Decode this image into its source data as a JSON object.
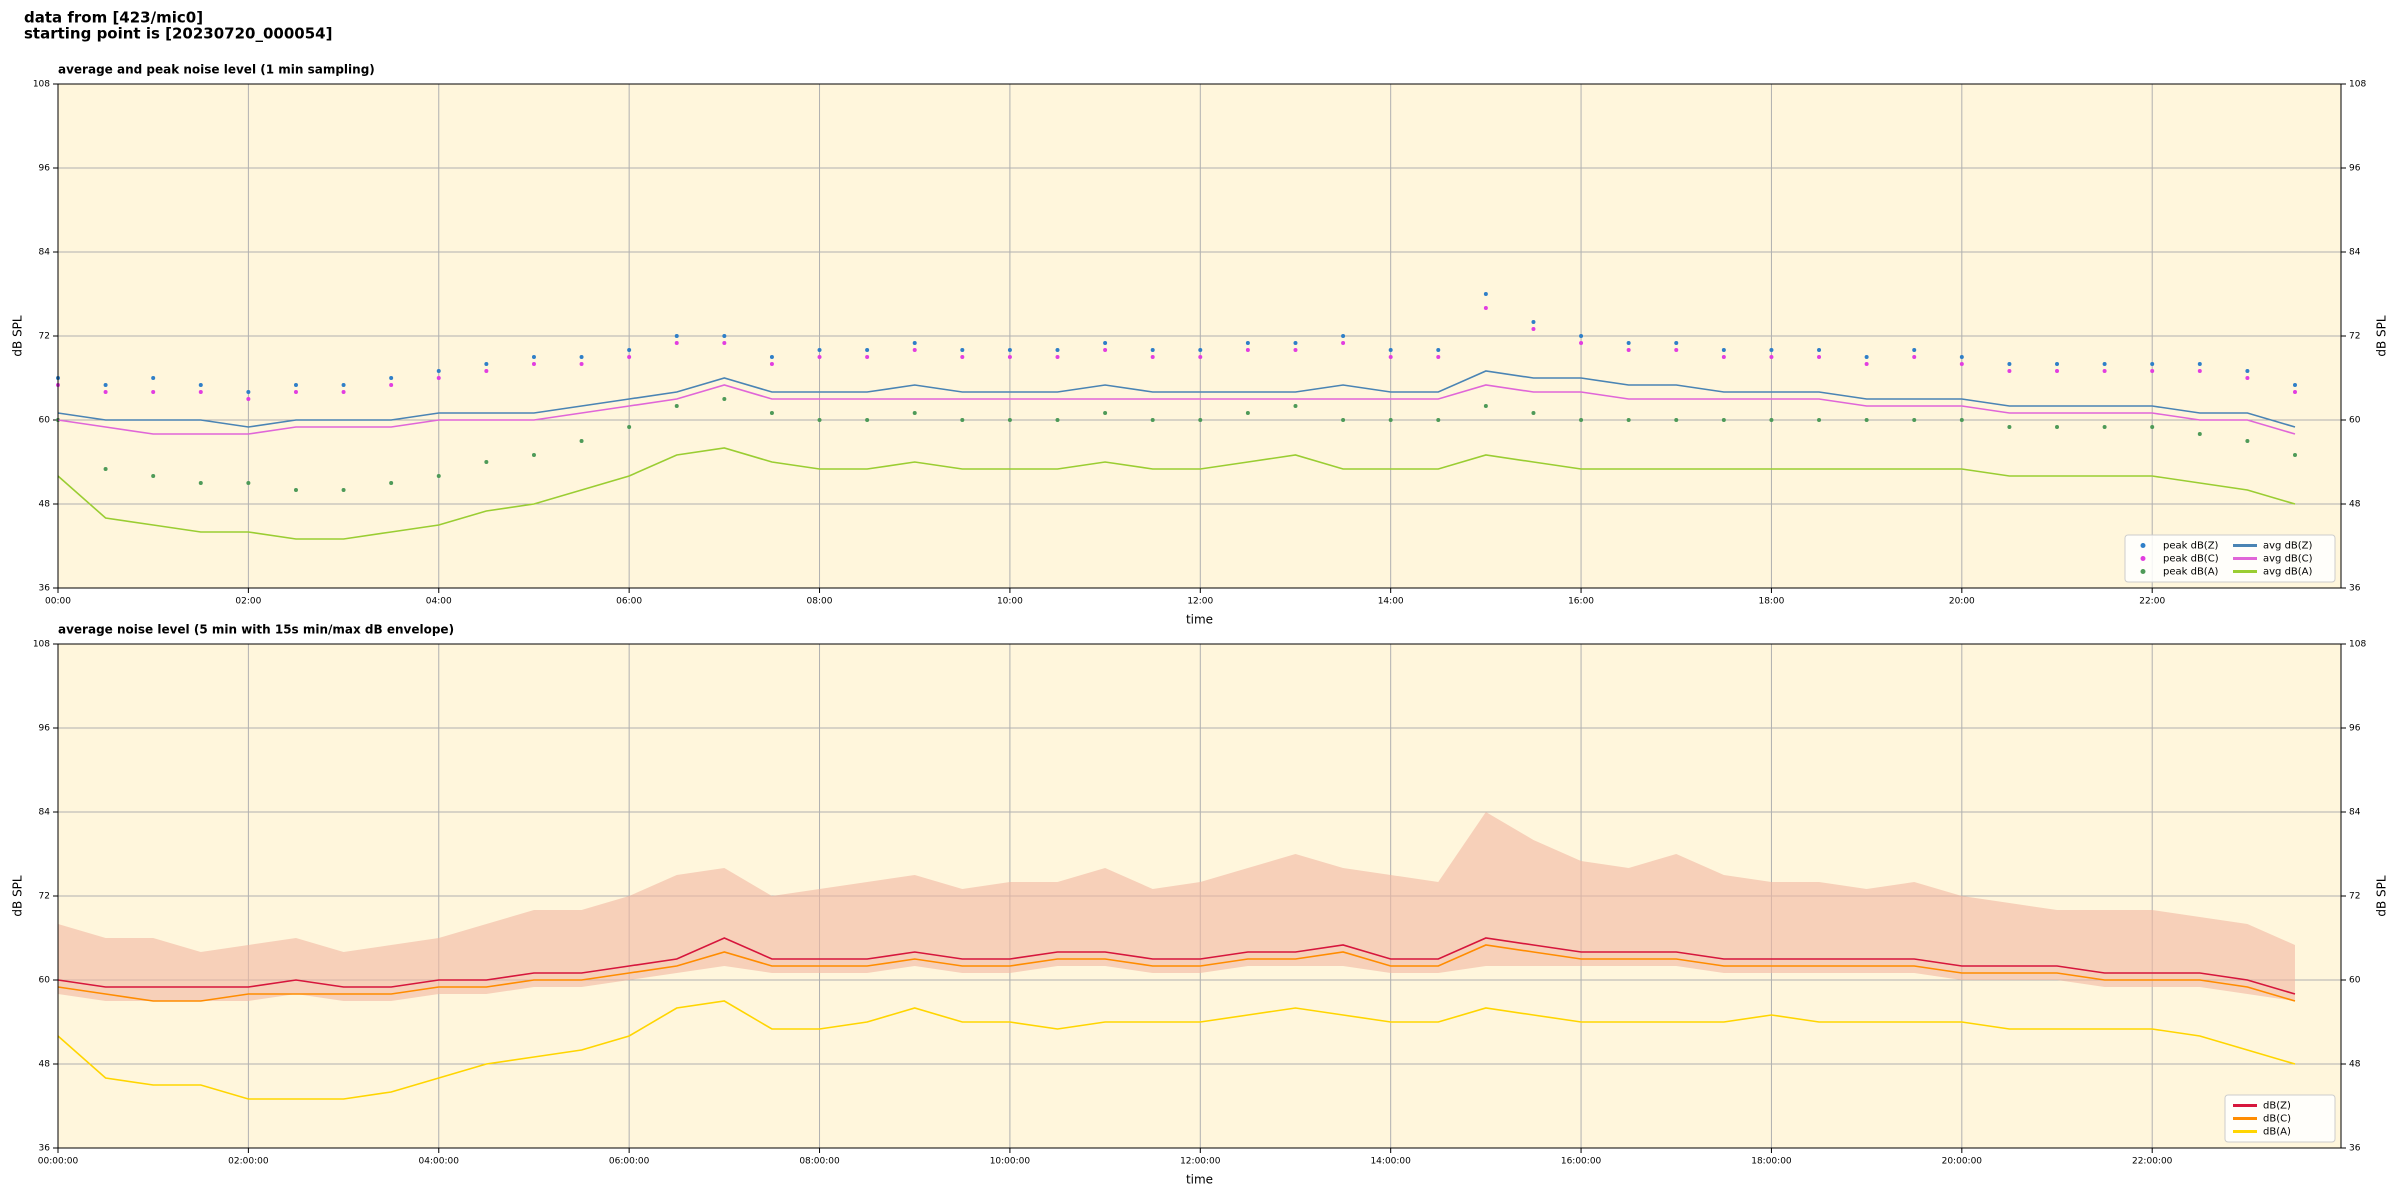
{
  "header": {
    "line1": "data from [423/mic0]",
    "line2": "starting point is [20230720_000054]"
  },
  "chart_data": [
    {
      "type": "line",
      "title": "average and peak noise level (1 min sampling)",
      "xlabel": "time",
      "ylabel": "dB SPL",
      "x": [
        "00:00",
        "00:30",
        "01:00",
        "01:30",
        "02:00",
        "02:30",
        "03:00",
        "03:30",
        "04:00",
        "04:30",
        "05:00",
        "05:30",
        "06:00",
        "06:30",
        "07:00",
        "07:30",
        "08:00",
        "08:30",
        "09:00",
        "09:30",
        "10:00",
        "10:30",
        "11:00",
        "11:30",
        "12:00",
        "12:30",
        "13:00",
        "13:30",
        "14:00",
        "14:30",
        "15:00",
        "15:30",
        "16:00",
        "16:30",
        "17:00",
        "17:30",
        "18:00",
        "18:30",
        "19:00",
        "19:30",
        "20:00",
        "20:30",
        "21:00",
        "21:30",
        "22:00",
        "22:30",
        "23:00",
        "23:30"
      ],
      "xlim": [
        "00:00",
        "23:59"
      ],
      "xticks": [
        "00:00",
        "02:00",
        "04:00",
        "06:00",
        "08:00",
        "10:00",
        "12:00",
        "14:00",
        "16:00",
        "18:00",
        "20:00",
        "22:00"
      ],
      "ylim": [
        36,
        108
      ],
      "yticks": [
        36,
        48,
        60,
        72,
        84,
        96,
        108
      ],
      "grid": true,
      "legend": "lower right",
      "legend_columns": 2,
      "series": [
        {
          "name": "peak dB(Z)",
          "style": "scatter",
          "color": "#2f7fc8",
          "values": [
            66,
            65,
            66,
            65,
            64,
            65,
            65,
            66,
            67,
            68,
            69,
            69,
            70,
            72,
            72,
            69,
            70,
            70,
            71,
            70,
            70,
            70,
            71,
            70,
            70,
            71,
            71,
            72,
            70,
            70,
            78,
            74,
            72,
            71,
            71,
            70,
            70,
            70,
            69,
            70,
            69,
            68,
            68,
            68,
            68,
            68,
            67,
            65
          ]
        },
        {
          "name": "peak dB(C)",
          "style": "scatter",
          "color": "#e23de0",
          "values": [
            65,
            64,
            64,
            64,
            63,
            64,
            64,
            65,
            66,
            67,
            68,
            68,
            69,
            71,
            71,
            68,
            69,
            69,
            70,
            69,
            69,
            69,
            70,
            69,
            69,
            70,
            70,
            71,
            69,
            69,
            76,
            73,
            71,
            70,
            70,
            69,
            69,
            69,
            68,
            69,
            68,
            67,
            67,
            67,
            67,
            67,
            66,
            64
          ]
        },
        {
          "name": "peak dB(A)",
          "style": "scatter",
          "color": "#4e9a58",
          "values": [
            60,
            53,
            52,
            51,
            51,
            50,
            50,
            51,
            52,
            54,
            55,
            57,
            59,
            62,
            63,
            61,
            60,
            60,
            61,
            60,
            60,
            60,
            61,
            60,
            60,
            61,
            62,
            60,
            60,
            60,
            62,
            61,
            60,
            60,
            60,
            60,
            60,
            60,
            60,
            60,
            60,
            59,
            59,
            59,
            59,
            58,
            57,
            55
          ]
        },
        {
          "name": "avg dB(Z)",
          "style": "line",
          "color": "#4a84b4",
          "values": [
            61,
            60,
            60,
            60,
            59,
            60,
            60,
            60,
            61,
            61,
            61,
            62,
            63,
            64,
            66,
            64,
            64,
            64,
            65,
            64,
            64,
            64,
            65,
            64,
            64,
            64,
            64,
            65,
            64,
            64,
            67,
            66,
            66,
            65,
            65,
            64,
            64,
            64,
            63,
            63,
            63,
            62,
            62,
            62,
            62,
            61,
            61,
            59
          ]
        },
        {
          "name": "avg dB(C)",
          "style": "line",
          "color": "#e066d8",
          "values": [
            60,
            59,
            58,
            58,
            58,
            59,
            59,
            59,
            60,
            60,
            60,
            61,
            62,
            63,
            65,
            63,
            63,
            63,
            63,
            63,
            63,
            63,
            63,
            63,
            63,
            63,
            63,
            63,
            63,
            63,
            65,
            64,
            64,
            63,
            63,
            63,
            63,
            63,
            62,
            62,
            62,
            61,
            61,
            61,
            61,
            60,
            60,
            58
          ]
        },
        {
          "name": "avg dB(A)",
          "style": "line",
          "color": "#9acd32",
          "values": [
            52,
            46,
            45,
            44,
            44,
            43,
            43,
            44,
            45,
            47,
            48,
            50,
            52,
            55,
            56,
            54,
            53,
            53,
            54,
            53,
            53,
            53,
            54,
            53,
            53,
            54,
            55,
            53,
            53,
            53,
            55,
            54,
            53,
            53,
            53,
            53,
            53,
            53,
            53,
            53,
            53,
            52,
            52,
            52,
            52,
            51,
            50,
            48
          ]
        }
      ]
    },
    {
      "type": "line",
      "title": "average noise level (5 min with 15s min/max dB envelope)",
      "xlabel": "time",
      "ylabel": "dB SPL",
      "x": [
        "00:00:00",
        "00:30:00",
        "01:00:00",
        "01:30:00",
        "02:00:00",
        "02:30:00",
        "03:00:00",
        "03:30:00",
        "04:00:00",
        "04:30:00",
        "05:00:00",
        "05:30:00",
        "06:00:00",
        "06:30:00",
        "07:00:00",
        "07:30:00",
        "08:00:00",
        "08:30:00",
        "09:00:00",
        "09:30:00",
        "10:00:00",
        "10:30:00",
        "11:00:00",
        "11:30:00",
        "12:00:00",
        "12:30:00",
        "13:00:00",
        "13:30:00",
        "14:00:00",
        "14:30:00",
        "15:00:00",
        "15:30:00",
        "16:00:00",
        "16:30:00",
        "17:00:00",
        "17:30:00",
        "18:00:00",
        "18:30:00",
        "19:00:00",
        "19:30:00",
        "20:00:00",
        "20:30:00",
        "21:00:00",
        "21:30:00",
        "22:00:00",
        "22:30:00",
        "23:00:00",
        "23:30:00"
      ],
      "xlim": [
        "00:00:00",
        "23:59:00"
      ],
      "xticks": [
        "00:00:00",
        "02:00:00",
        "04:00:00",
        "06:00:00",
        "08:00:00",
        "10:00:00",
        "12:00:00",
        "14:00:00",
        "16:00:00",
        "18:00:00",
        "20:00:00",
        "22:00:00"
      ],
      "ylim": [
        36,
        108
      ],
      "yticks": [
        36,
        48,
        60,
        72,
        84,
        96,
        108
      ],
      "grid": true,
      "legend": "lower right",
      "legend_columns": 1,
      "envelope": {
        "color": "#f2b8a2",
        "max": [
          68,
          66,
          66,
          64,
          65,
          66,
          64,
          65,
          66,
          68,
          70,
          70,
          72,
          75,
          76,
          72,
          73,
          74,
          75,
          73,
          74,
          74,
          76,
          73,
          74,
          76,
          78,
          76,
          75,
          74,
          84,
          80,
          77,
          76,
          78,
          75,
          74,
          74,
          73,
          74,
          72,
          71,
          70,
          70,
          70,
          69,
          68,
          65
        ],
        "min": [
          58,
          57,
          57,
          57,
          57,
          58,
          57,
          57,
          58,
          58,
          59,
          59,
          60,
          61,
          62,
          61,
          61,
          61,
          62,
          61,
          61,
          62,
          62,
          61,
          61,
          62,
          62,
          62,
          61,
          61,
          62,
          62,
          62,
          62,
          62,
          61,
          61,
          61,
          61,
          61,
          60,
          60,
          60,
          59,
          59,
          59,
          58,
          57
        ]
      },
      "series": [
        {
          "name": "dB(Z)",
          "style": "line",
          "color": "#d6163c",
          "values": [
            60,
            59,
            59,
            59,
            59,
            60,
            59,
            59,
            60,
            60,
            61,
            61,
            62,
            63,
            66,
            63,
            63,
            63,
            64,
            63,
            63,
            64,
            64,
            63,
            63,
            64,
            64,
            65,
            63,
            63,
            66,
            65,
            64,
            64,
            64,
            63,
            63,
            63,
            63,
            63,
            62,
            62,
            62,
            61,
            61,
            61,
            60,
            58
          ]
        },
        {
          "name": "dB(C)",
          "style": "line",
          "color": "#ff8c00",
          "values": [
            59,
            58,
            57,
            57,
            58,
            58,
            58,
            58,
            59,
            59,
            60,
            60,
            61,
            62,
            64,
            62,
            62,
            62,
            63,
            62,
            62,
            63,
            63,
            62,
            62,
            63,
            63,
            64,
            62,
            62,
            65,
            64,
            63,
            63,
            63,
            62,
            62,
            62,
            62,
            62,
            61,
            61,
            61,
            60,
            60,
            60,
            59,
            57
          ]
        },
        {
          "name": "dB(A)",
          "style": "line",
          "color": "#ffd500",
          "values": [
            52,
            46,
            45,
            45,
            43,
            43,
            43,
            44,
            46,
            48,
            49,
            50,
            52,
            56,
            57,
            53,
            53,
            54,
            56,
            54,
            54,
            53,
            54,
            54,
            54,
            55,
            56,
            55,
            54,
            54,
            56,
            55,
            54,
            54,
            54,
            54,
            55,
            54,
            54,
            54,
            54,
            53,
            53,
            53,
            53,
            52,
            50,
            48
          ]
        }
      ]
    }
  ]
}
